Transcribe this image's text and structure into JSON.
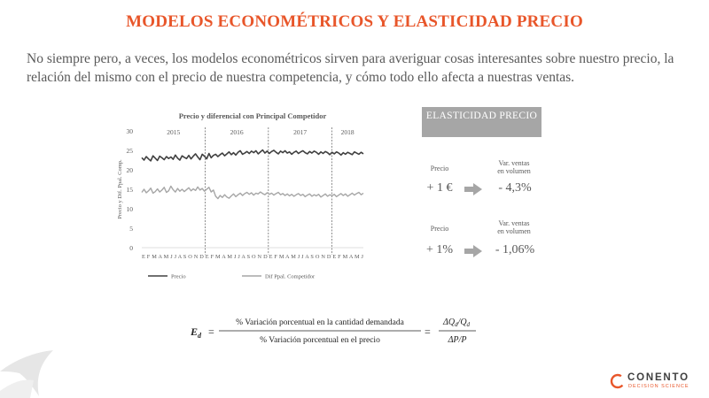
{
  "slide": {
    "title": "MODELOS ECONOMÉTRICOS Y ELASTICIDAD PRECIO",
    "intro": "No siempre pero, a veces, los modelos econométricos sirven para averiguar cosas interesantes sobre nuestro precio, la relación del mismo con el precio de nuestra competencia, y cómo todo ello afecta a nuestras ventas."
  },
  "chart_data": {
    "type": "line",
    "title": "Precio y diferencial con Principal Competidor",
    "ylabel": "Precio y Dif. Ppal. Comp.",
    "ylim": [
      0,
      30
    ],
    "yticks": [
      0,
      5,
      10,
      15,
      20,
      25,
      30
    ],
    "grid": false,
    "legend_position": "bottom",
    "years": [
      "2015",
      "2016",
      "2017",
      "2018"
    ],
    "x_months": "E F M A M J J A S O N D E F M A M J J A S O N D E F M A M J J A S O N D E F M A M J",
    "series": [
      {
        "name": "Precio",
        "color": "#404040",
        "values": [
          23.1,
          22.5,
          23.4,
          22.8,
          22.3,
          23.6,
          23.0,
          22.4,
          23.5,
          23.1,
          22.6,
          23.4,
          22.9,
          23.3,
          22.7,
          23.8,
          23.0,
          22.5,
          23.6,
          23.2,
          22.9,
          23.7,
          22.8,
          23.5,
          24.1,
          23.3,
          22.6,
          24.0,
          23.5,
          22.8,
          24.2,
          23.1,
          23.7,
          24.0,
          23.4,
          23.9,
          24.3,
          23.6,
          24.1,
          24.6,
          23.9,
          24.4,
          23.8,
          24.5,
          24.9,
          24.0,
          24.3,
          24.7,
          24.2,
          24.8,
          24.4,
          24.9,
          24.1,
          24.6,
          25.1,
          24.3,
          24.8,
          24.2,
          24.7,
          25.0,
          24.5,
          24.1,
          24.8,
          24.4,
          24.9,
          24.3,
          24.6,
          24.0,
          24.5,
          24.8,
          24.2,
          24.6,
          24.9,
          24.4,
          24.1,
          24.7,
          24.3,
          24.8,
          24.5,
          24.0,
          24.6,
          24.2,
          24.7,
          24.4,
          23.9,
          24.5,
          24.1,
          24.6,
          24.3,
          23.8,
          24.4,
          24.0,
          24.5,
          24.2,
          23.9,
          24.6,
          24.3,
          24.0,
          24.5,
          24.1
        ]
      },
      {
        "name": "Dif Ppal. Competidor",
        "color": "#a6a6a6",
        "values": [
          14.2,
          15.0,
          14.1,
          14.6,
          15.3,
          14.0,
          14.4,
          15.1,
          14.3,
          14.8,
          15.5,
          14.2,
          14.6,
          15.8,
          14.9,
          14.3,
          15.2,
          14.5,
          15.0,
          14.4,
          14.9,
          15.4,
          14.6,
          15.1,
          14.7,
          15.6,
          14.8,
          15.2,
          14.5,
          15.0,
          15.5,
          14.3,
          14.8,
          13.2,
          12.6,
          13.4,
          12.9,
          13.6,
          13.0,
          12.7,
          13.3,
          13.8,
          13.1,
          13.6,
          14.0,
          13.4,
          13.9,
          14.2,
          13.7,
          14.1,
          13.5,
          14.0,
          13.8,
          14.3,
          13.9,
          13.6,
          14.1,
          13.7,
          14.0,
          13.5,
          13.9,
          14.2,
          13.6,
          13.9,
          13.4,
          13.8,
          13.3,
          13.7,
          13.2,
          13.6,
          13.9,
          13.4,
          13.7,
          13.1,
          13.5,
          13.8,
          13.2,
          13.6,
          13.3,
          13.7,
          13.0,
          13.4,
          13.8,
          13.2,
          13.6,
          13.3,
          13.7,
          13.1,
          13.5,
          13.9,
          13.4,
          13.8,
          13.2,
          13.6,
          14.0,
          13.5,
          13.9,
          14.2,
          13.6,
          14.0
        ]
      }
    ]
  },
  "elasticity": {
    "header": "ELASTICIDAD PRECIO",
    "rows": [
      {
        "left_label": "Precio",
        "right_label_1": "Var. ventas",
        "right_label_2": "en volumen",
        "left_value": "+ 1 €",
        "right_value": "- 4,3%"
      },
      {
        "left_label": "Precio",
        "right_label_1": "Var. ventas",
        "right_label_2": "en volumen",
        "left_value": "+ 1%",
        "right_value": "- 1,06%"
      }
    ]
  },
  "formula": {
    "lhs": "E",
    "lhs_sub": "d",
    "numerator": "% Variación porcentual en la cantidad demandada",
    "denominator": "% Variación porcentual en el precio",
    "rhs_numerator": "ΔQ",
    "rhs_numerator_sub": "d",
    "rhs_numerator_tail": "/Q",
    "rhs_numerator_tail_sub": "d",
    "rhs_denominator": "ΔP/P"
  },
  "brand": {
    "name": "CONENTO",
    "tagline": "DECISION SCIENCE",
    "accent": "#e8562a"
  },
  "colors": {
    "title": "#e8562a",
    "text": "#595959",
    "header_bg": "#a6a6a6",
    "arrow": "#a6a6a6"
  }
}
